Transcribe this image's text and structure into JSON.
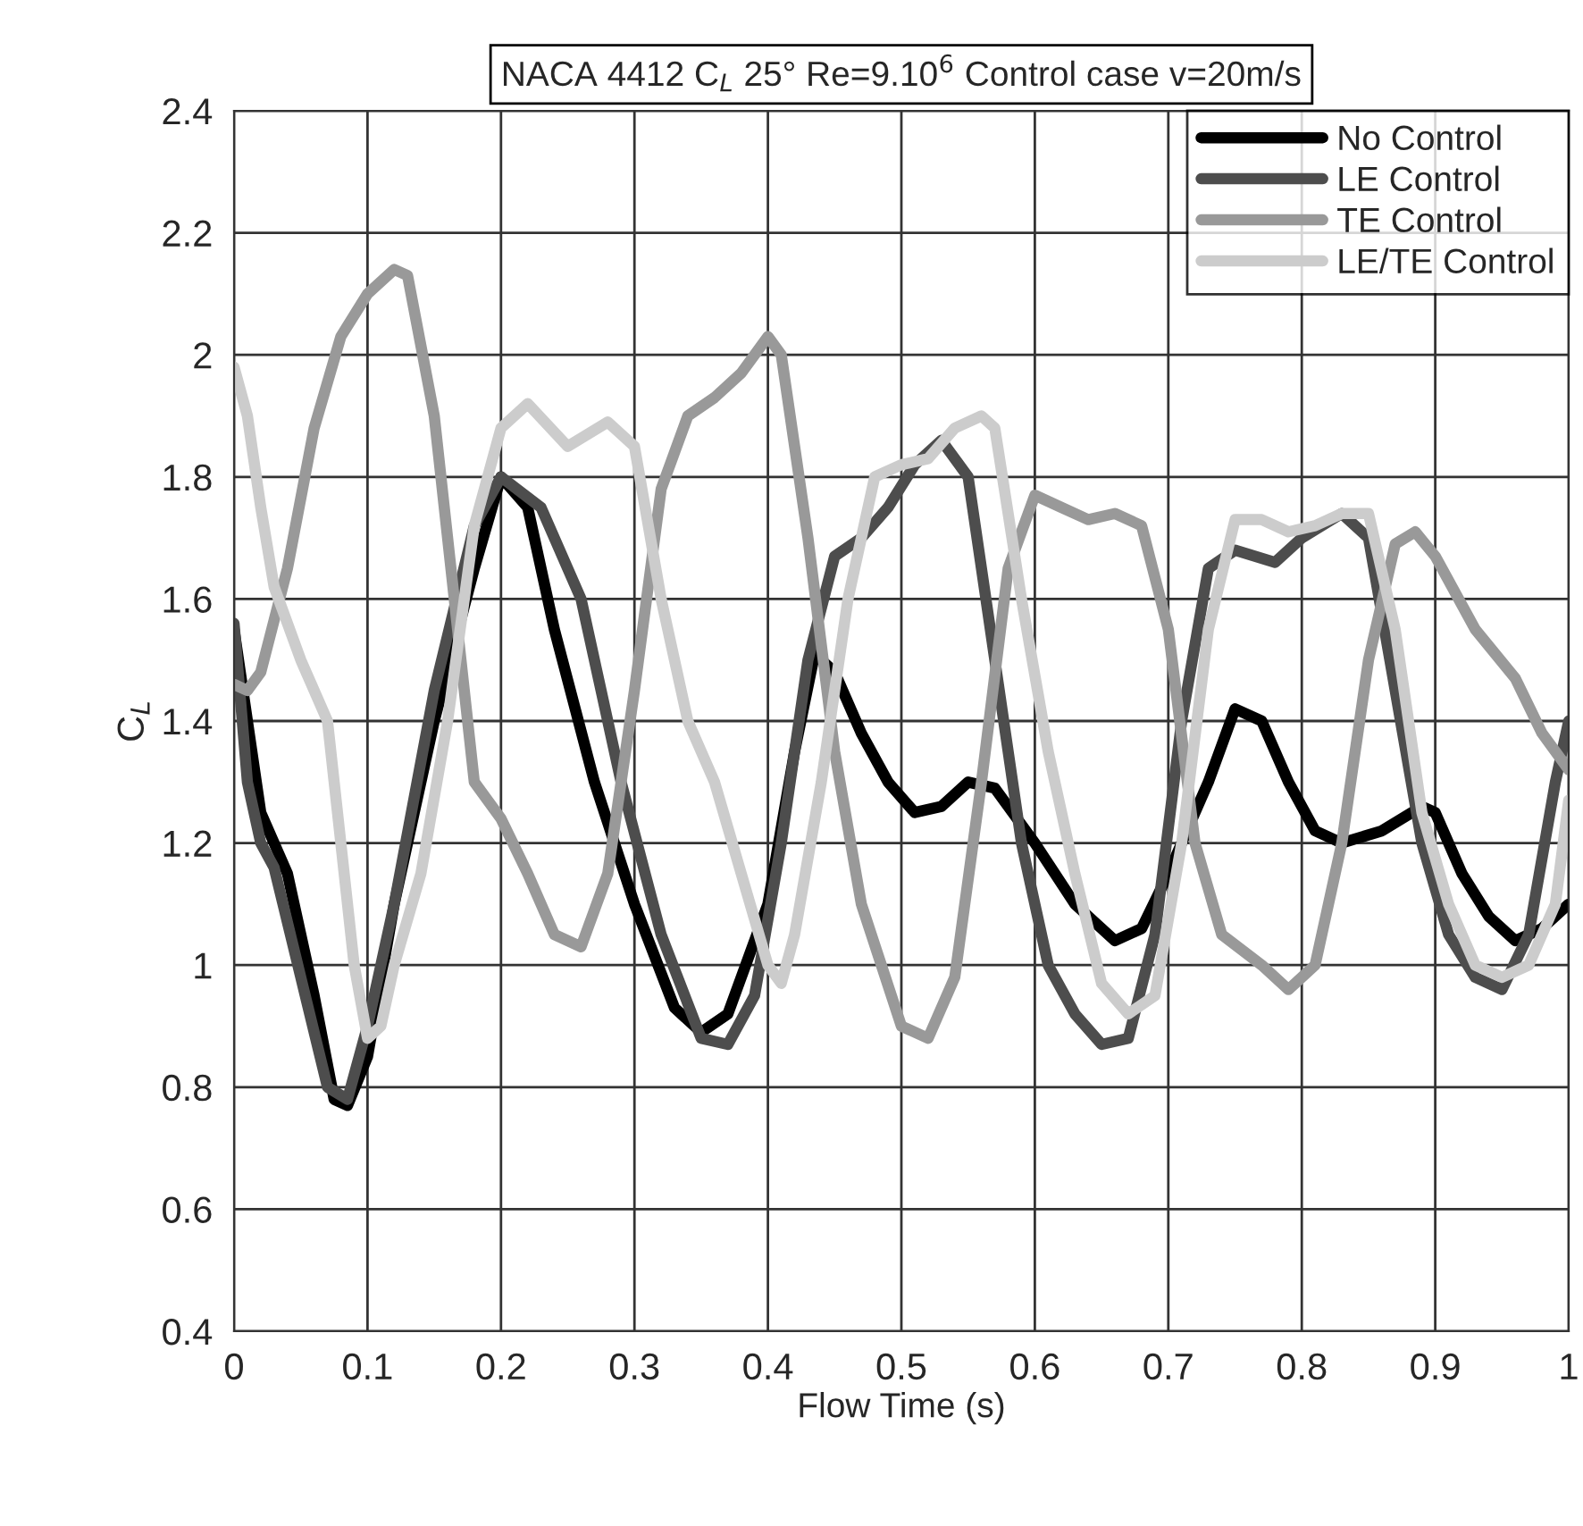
{
  "chart_data": {
    "type": "line",
    "title": "NACA 4412 C$_{L}$ 25° Re=9.10$^{6}$ Control case v=20m/s",
    "xlabel": "Flow Time (s)",
    "ylabel": "C$_{L}$",
    "xlim": [
      0,
      1
    ],
    "ylim": [
      0.4,
      2.4
    ],
    "xticks": [
      0,
      0.1,
      0.2,
      0.3,
      0.4,
      0.5,
      0.6,
      0.7,
      0.8,
      0.9,
      1
    ],
    "yticks": [
      {
        "value": 0.4,
        "label": "0.4"
      },
      {
        "value": 0.6,
        "label": "0.6"
      },
      {
        "value": 0.8,
        "label": "0.8"
      },
      1,
      {
        "value": 1.2,
        "label": "1.2"
      },
      {
        "value": 1.4,
        "label": "1.4"
      },
      {
        "value": 1.6,
        "label": "1.6"
      },
      {
        "value": 1.8,
        "label": "1.8"
      },
      2,
      {
        "value": 2.2,
        "label": "2.2"
      },
      {
        "value": 2.4,
        "label": "2.4"
      }
    ],
    "grid": true,
    "legend": "top right",
    "line_style": "solid",
    "marker": "none",
    "series": [
      {
        "name": "No Control",
        "color": "#000000",
        "x": [
          0,
          0.02,
          0.04,
          0.06,
          0.075,
          0.085,
          0.1,
          0.12,
          0.15,
          0.18,
          0.2,
          0.22,
          0.24,
          0.27,
          0.3,
          0.33,
          0.35,
          0.37,
          0.4,
          0.42,
          0.435,
          0.45,
          0.47,
          0.49,
          0.51,
          0.53,
          0.55,
          0.57,
          0.6,
          0.63,
          0.66,
          0.68,
          0.7,
          0.73,
          0.75,
          0.77,
          0.79,
          0.81,
          0.83,
          0.86,
          0.89,
          0.9,
          0.92,
          0.94,
          0.96,
          0.98,
          1.0
        ],
        "values": [
          1.55,
          1.25,
          1.15,
          0.95,
          0.78,
          0.77,
          0.85,
          1.1,
          1.4,
          1.65,
          1.8,
          1.75,
          1.55,
          1.3,
          1.1,
          0.93,
          0.89,
          0.92,
          1.1,
          1.35,
          1.51,
          1.48,
          1.38,
          1.3,
          1.25,
          1.26,
          1.3,
          1.29,
          1.2,
          1.1,
          1.04,
          1.06,
          1.15,
          1.3,
          1.42,
          1.4,
          1.3,
          1.22,
          1.2,
          1.22,
          1.26,
          1.25,
          1.15,
          1.08,
          1.04,
          1.06,
          1.1
        ]
      },
      {
        "name": "LE Control",
        "color": "#4d4d4d",
        "x": [
          0,
          0.01,
          0.02,
          0.03,
          0.05,
          0.07,
          0.085,
          0.1,
          0.12,
          0.15,
          0.18,
          0.2,
          0.23,
          0.26,
          0.29,
          0.32,
          0.35,
          0.37,
          0.39,
          0.41,
          0.43,
          0.45,
          0.47,
          0.49,
          0.51,
          0.53,
          0.55,
          0.57,
          0.59,
          0.61,
          0.63,
          0.65,
          0.67,
          0.69,
          0.71,
          0.73,
          0.75,
          0.78,
          0.8,
          0.83,
          0.85,
          0.87,
          0.89,
          0.91,
          0.93,
          0.95,
          0.97,
          0.99,
          1.0
        ],
        "values": [
          1.56,
          1.3,
          1.2,
          1.16,
          0.98,
          0.8,
          0.78,
          0.9,
          1.1,
          1.45,
          1.72,
          1.8,
          1.75,
          1.6,
          1.3,
          1.05,
          0.88,
          0.87,
          0.95,
          1.2,
          1.5,
          1.67,
          1.7,
          1.75,
          1.82,
          1.86,
          1.8,
          1.5,
          1.2,
          1.0,
          0.92,
          0.87,
          0.88,
          1.05,
          1.4,
          1.65,
          1.68,
          1.66,
          1.7,
          1.74,
          1.7,
          1.45,
          1.2,
          1.05,
          0.98,
          0.96,
          1.05,
          1.3,
          1.4
        ]
      },
      {
        "name": "TE Control",
        "color": "#999999",
        "x": [
          0,
          0.01,
          0.02,
          0.04,
          0.06,
          0.08,
          0.1,
          0.12,
          0.13,
          0.15,
          0.17,
          0.18,
          0.2,
          0.22,
          0.24,
          0.26,
          0.28,
          0.3,
          0.32,
          0.34,
          0.36,
          0.38,
          0.4,
          0.41,
          0.43,
          0.45,
          0.47,
          0.5,
          0.52,
          0.54,
          0.56,
          0.58,
          0.6,
          0.62,
          0.64,
          0.66,
          0.68,
          0.7,
          0.72,
          0.74,
          0.77,
          0.79,
          0.81,
          0.83,
          0.85,
          0.87,
          0.885,
          0.9,
          0.93,
          0.96,
          0.98,
          1.0
        ],
        "values": [
          1.46,
          1.45,
          1.48,
          1.65,
          1.88,
          2.03,
          2.1,
          2.14,
          2.13,
          1.9,
          1.5,
          1.3,
          1.24,
          1.15,
          1.05,
          1.03,
          1.15,
          1.45,
          1.78,
          1.9,
          1.93,
          1.97,
          2.03,
          2.0,
          1.7,
          1.35,
          1.1,
          0.9,
          0.88,
          0.98,
          1.3,
          1.65,
          1.77,
          1.75,
          1.73,
          1.74,
          1.72,
          1.55,
          1.2,
          1.05,
          1.0,
          0.96,
          1.0,
          1.2,
          1.5,
          1.69,
          1.71,
          1.67,
          1.55,
          1.47,
          1.38,
          1.32
        ]
      },
      {
        "name": "LE/TE Control",
        "color": "#cccccc",
        "x": [
          0,
          0.01,
          0.02,
          0.03,
          0.05,
          0.07,
          0.08,
          0.09,
          0.1,
          0.11,
          0.12,
          0.14,
          0.16,
          0.18,
          0.2,
          0.22,
          0.25,
          0.28,
          0.3,
          0.32,
          0.34,
          0.36,
          0.38,
          0.4,
          0.41,
          0.42,
          0.44,
          0.46,
          0.48,
          0.5,
          0.52,
          0.54,
          0.56,
          0.57,
          0.59,
          0.61,
          0.63,
          0.65,
          0.67,
          0.69,
          0.71,
          0.73,
          0.75,
          0.77,
          0.79,
          0.81,
          0.83,
          0.85,
          0.87,
          0.89,
          0.91,
          0.93,
          0.95,
          0.97,
          0.99,
          1.0
        ],
        "values": [
          1.98,
          1.9,
          1.75,
          1.62,
          1.5,
          1.4,
          1.2,
          1.0,
          0.88,
          0.9,
          1.0,
          1.15,
          1.4,
          1.72,
          1.88,
          1.92,
          1.85,
          1.89,
          1.85,
          1.6,
          1.4,
          1.3,
          1.15,
          1.0,
          0.97,
          1.05,
          1.3,
          1.6,
          1.8,
          1.82,
          1.83,
          1.88,
          1.9,
          1.88,
          1.6,
          1.35,
          1.15,
          0.97,
          0.92,
          0.95,
          1.2,
          1.55,
          1.73,
          1.73,
          1.71,
          1.72,
          1.74,
          1.74,
          1.55,
          1.25,
          1.1,
          1.0,
          0.98,
          1.0,
          1.1,
          1.27
        ]
      }
    ]
  }
}
